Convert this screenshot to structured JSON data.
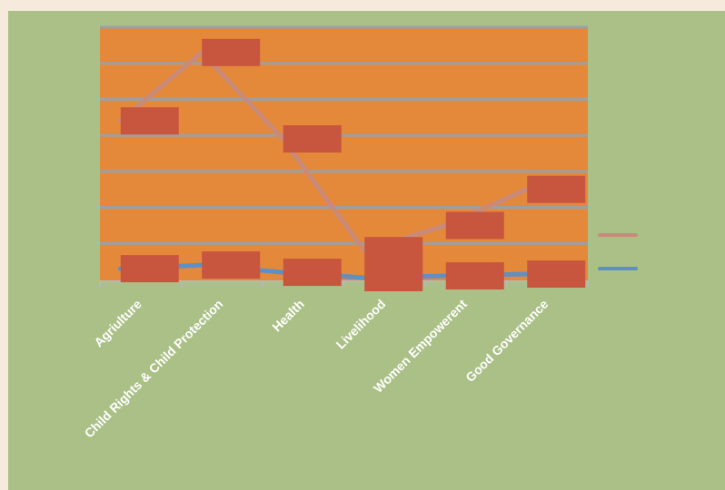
{
  "chart_data": {
    "type": "line",
    "title": "",
    "xlabel": "",
    "ylabel": "",
    "grid": true,
    "legend": "right",
    "categories": [
      "Agriulture",
      "Child Rights & Child Protection",
      "Health",
      "Livelihood",
      "Women Empowerent",
      "Good Governance"
    ],
    "ylim": [
      0,
      7
    ],
    "series": [
      {
        "color": "#c98a7a",
        "values": [
          4.4,
          6.3,
          3.9,
          0.8,
          1.5,
          2.5
        ],
        "marker_color": "#c8553d"
      },
      {
        "color": "#5f8fc4",
        "values": [
          0.3,
          0.4,
          0.2,
          0.05,
          0.1,
          0.15
        ],
        "marker_color": "#c8553d"
      }
    ],
    "label_offsets": [
      [
        0,
        0
      ],
      [
        0,
        0
      ]
    ],
    "colors": {
      "outer_frame": "#abc087",
      "plot_area": "#e4893a",
      "gridline": "#9aa0a6",
      "axis": "#b7b7b7",
      "label_box": "#c8553d"
    }
  }
}
